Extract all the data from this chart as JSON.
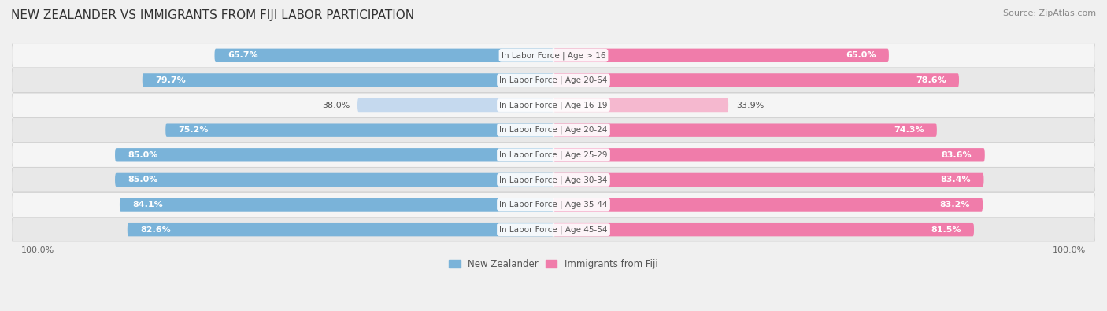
{
  "title": "NEW ZEALANDER VS IMMIGRANTS FROM FIJI LABOR PARTICIPATION",
  "source": "Source: ZipAtlas.com",
  "categories": [
    "In Labor Force | Age > 16",
    "In Labor Force | Age 20-64",
    "In Labor Force | Age 16-19",
    "In Labor Force | Age 20-24",
    "In Labor Force | Age 25-29",
    "In Labor Force | Age 30-34",
    "In Labor Force | Age 35-44",
    "In Labor Force | Age 45-54"
  ],
  "nz_values": [
    65.7,
    79.7,
    38.0,
    75.2,
    85.0,
    85.0,
    84.1,
    82.6
  ],
  "fiji_values": [
    65.0,
    78.6,
    33.9,
    74.3,
    83.6,
    83.4,
    83.2,
    81.5
  ],
  "nz_color": "#7ab3d9",
  "nz_color_light": "#c5d9ee",
  "fiji_color": "#f07caa",
  "fiji_color_light": "#f5b8cf",
  "background_color": "#f0f0f0",
  "row_bg_colors": [
    "#f5f5f5",
    "#e8e8e8"
  ],
  "legend_nz": "New Zealander",
  "legend_fiji": "Immigrants from Fiji",
  "title_fontsize": 11,
  "label_fontsize": 8,
  "tick_fontsize": 8,
  "source_fontsize": 8
}
